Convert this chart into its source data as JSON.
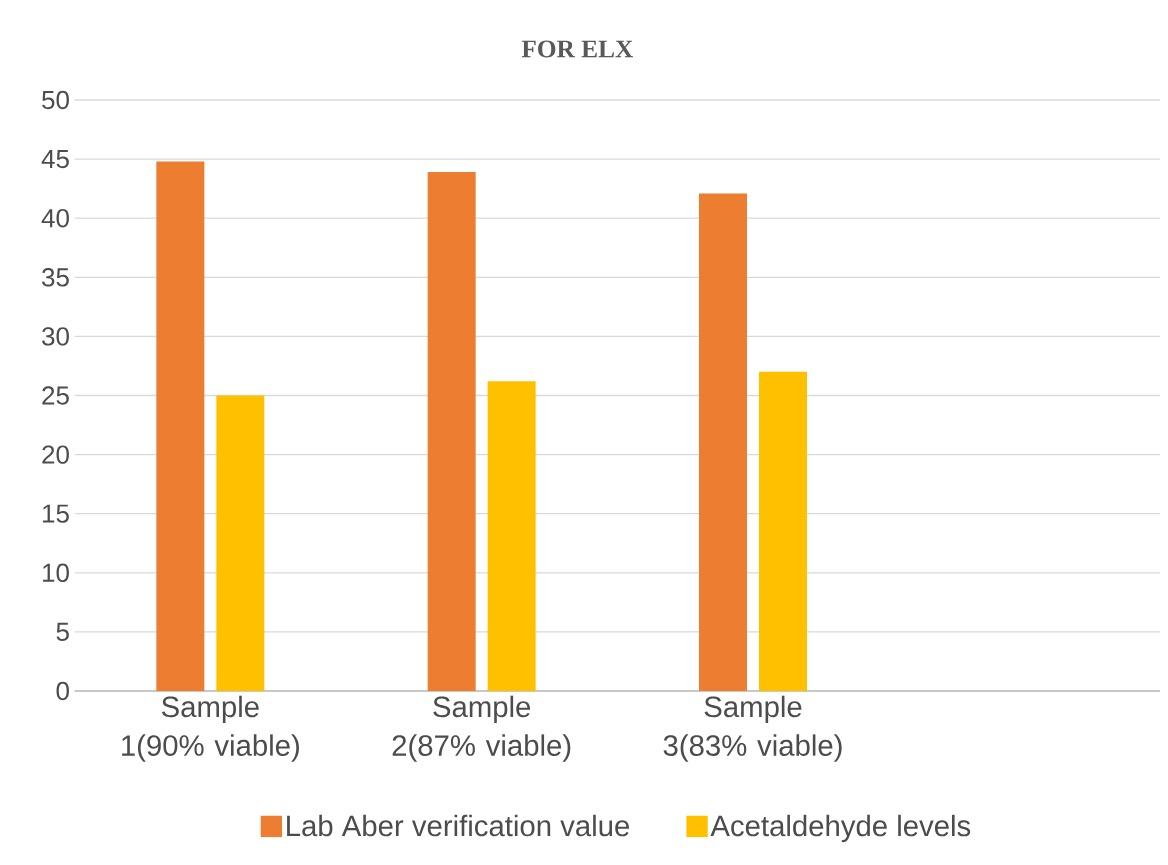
{
  "chart_data": {
    "type": "bar",
    "title": "FOR ELX",
    "categories": [
      "Sample 1(90% viable)",
      "Sample 2(87% viable)",
      "Sample 3(83% viable)",
      null
    ],
    "series": [
      {
        "name": "Lab Aber verification value",
        "color": "#ed7d31",
        "values": [
          44.8,
          43.9,
          42.1,
          null
        ]
      },
      {
        "name": "Acetaldehyde levels",
        "color": "#ffc000",
        "values": [
          25.0,
          26.2,
          27.0,
          null
        ]
      }
    ],
    "ylim": [
      0,
      50
    ],
    "yticks": [
      0,
      5,
      10,
      15,
      20,
      25,
      30,
      35,
      40,
      45,
      50
    ],
    "grid": "y",
    "legend": "bottom"
  }
}
